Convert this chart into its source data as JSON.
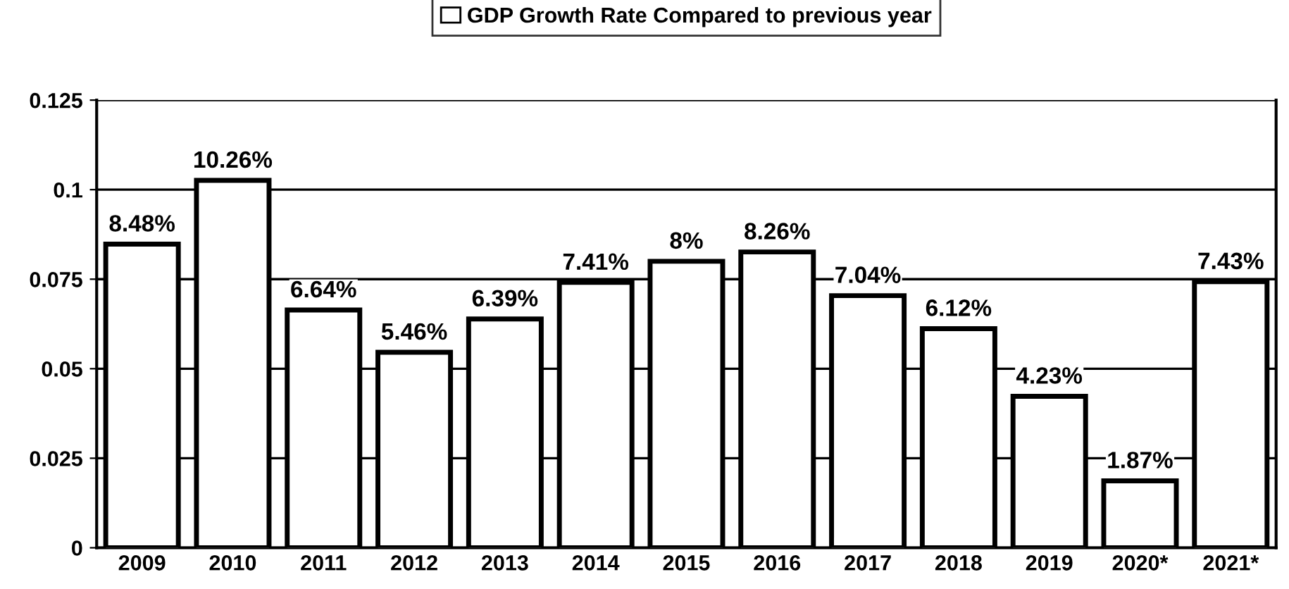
{
  "chart_data": {
    "type": "bar",
    "categories": [
      "2009",
      "2010",
      "2011",
      "2012",
      "2013",
      "2014",
      "2015",
      "2016",
      "2017",
      "2018",
      "2019",
      "2020*",
      "2021*"
    ],
    "series": [
      {
        "name": "GDP Growth Rate Compared to previous year",
        "color": "#ffffff",
        "values": [
          0.0848,
          0.1026,
          0.0664,
          0.0546,
          0.0639,
          0.0741,
          0.08,
          0.0826,
          0.0704,
          0.0612,
          0.0423,
          0.0187,
          0.0743
        ],
        "value_labels": [
          "8.48%",
          "10.26%",
          "6.64%",
          "5.46%",
          "6.39%",
          "7.41%",
          "8%",
          "8.26%",
          "7.04%",
          "6.12%",
          "4.23%",
          "1.87%",
          "7.43%"
        ]
      }
    ],
    "ylim": [
      0,
      0.125
    ],
    "yticks": [
      0,
      0.025,
      0.05,
      0.075,
      0.1,
      0.125
    ],
    "grid": "y",
    "legend": "top"
  }
}
